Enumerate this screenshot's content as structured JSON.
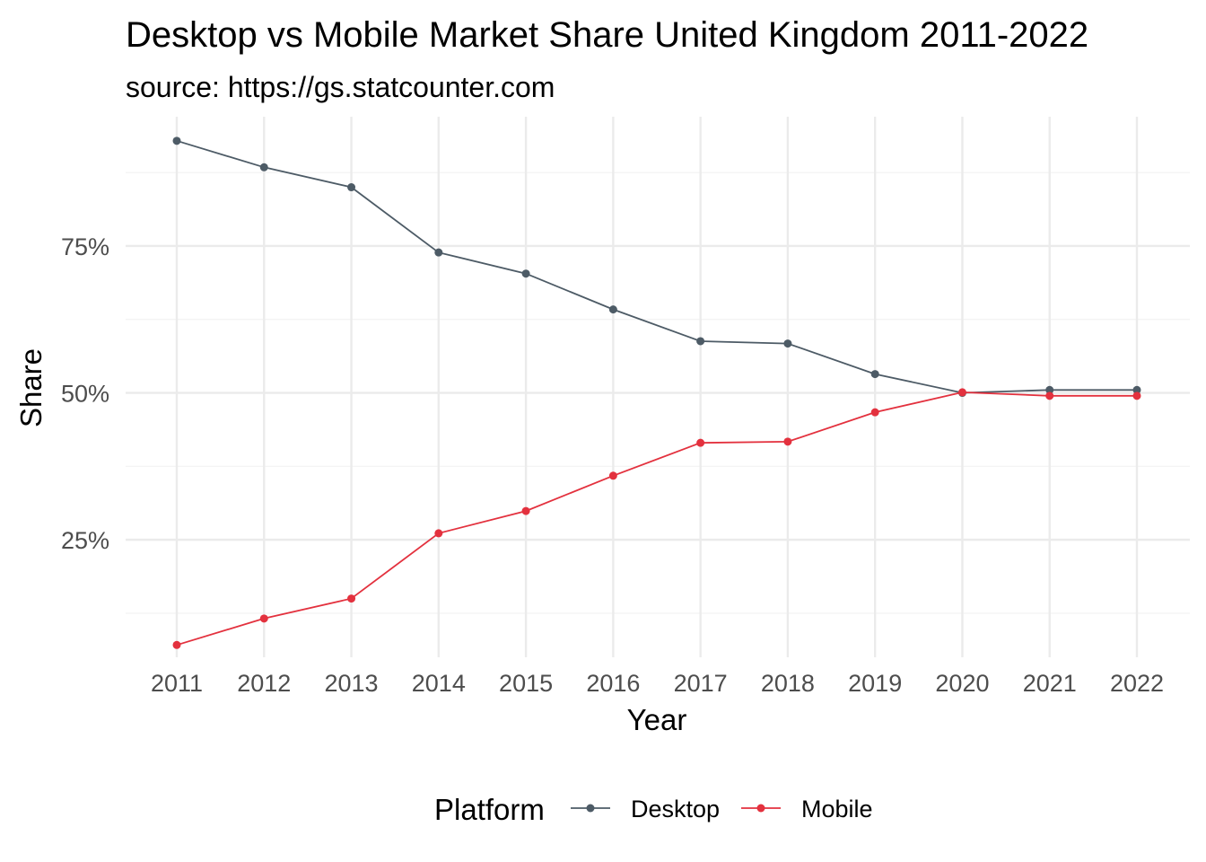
{
  "chart_data": {
    "type": "line",
    "title": "Desktop vs Mobile Market Share United Kingdom 2011-2022",
    "subtitle": "source: https://gs.statcounter.com",
    "xlabel": "Year",
    "ylabel": "Share",
    "x": [
      "2011",
      "2012",
      "2013",
      "2014",
      "2015",
      "2016",
      "2017",
      "2018",
      "2019",
      "2020",
      "2021",
      "2022"
    ],
    "ylim": [
      0.05,
      0.97
    ],
    "yticks": [
      {
        "value": 0.25,
        "label": "25%"
      },
      {
        "value": 0.5,
        "label": "50%"
      },
      {
        "value": 0.75,
        "label": "75%"
      }
    ],
    "grid": true,
    "legend": {
      "title": "Platform",
      "position": "bottom"
    },
    "series": [
      {
        "name": "Desktop",
        "color": "#4d5b66",
        "values": [
          0.929,
          0.884,
          0.85,
          0.739,
          0.703,
          0.642,
          0.588,
          0.584,
          0.532,
          0.5,
          0.505,
          0.505
        ]
      },
      {
        "name": "Mobile",
        "color": "#e3313e",
        "values": [
          0.071,
          0.116,
          0.15,
          0.261,
          0.299,
          0.359,
          0.415,
          0.417,
          0.467,
          0.501,
          0.495,
          0.495
        ]
      }
    ]
  }
}
